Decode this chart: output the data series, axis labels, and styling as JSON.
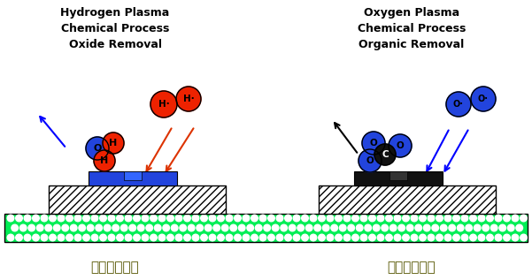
{
  "title_left": "Hydrogen Plasma\nChemical Process\nOxide Removal",
  "title_right": "Oxygen Plasma\nChemical Process\nOrganic Removal",
  "label_left": "化学清洗工艺",
  "label_right": "化学清洗工艺",
  "bg_color": "#ffffff",
  "green_color": "#00ee55",
  "red_atom_color": "#ee2200",
  "blue_atom_color": "#2244dd",
  "black_atom_color": "#111111"
}
